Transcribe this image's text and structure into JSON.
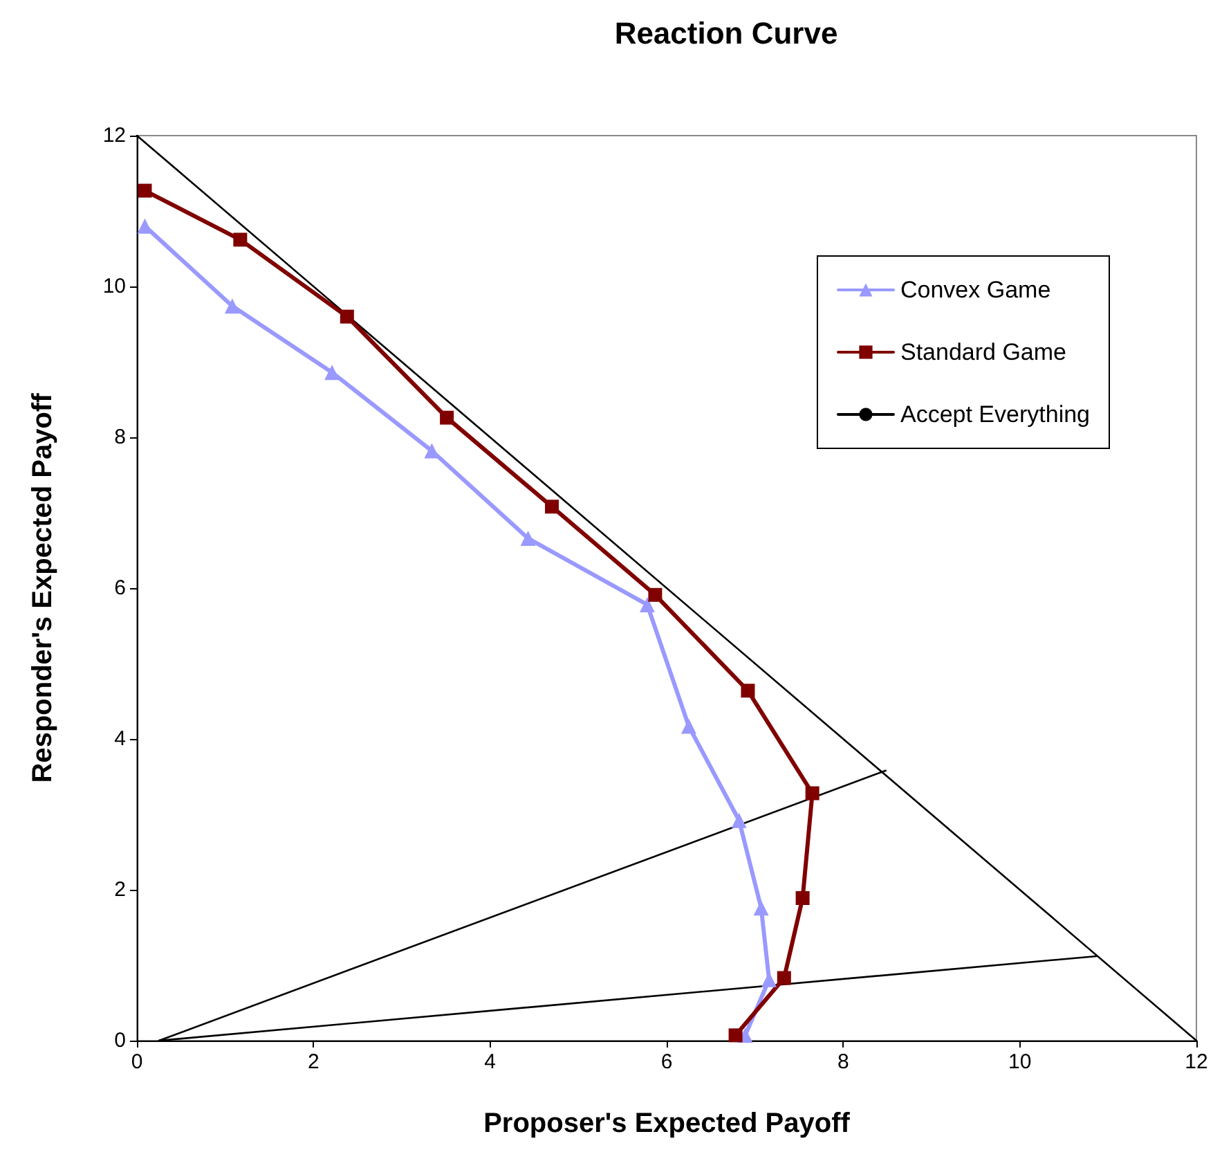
{
  "chart_data": {
    "type": "line",
    "title": "Reaction Curve",
    "xlabel": "Proposer's Expected Payoff",
    "ylabel": "Responder's Expected Payoff",
    "xlim": [
      0,
      12
    ],
    "ylim": [
      0,
      12
    ],
    "xticks": [
      0,
      2,
      4,
      6,
      8,
      10,
      12
    ],
    "yticks": [
      0,
      2,
      4,
      6,
      8,
      10,
      12
    ],
    "grid": false,
    "legend": "top right",
    "line_style": "solid",
    "series": [
      {
        "name": "Convex Game",
        "color": "#9999ff",
        "marker": "triangle",
        "x": [
          0.09,
          1.08,
          2.21,
          3.34,
          4.43,
          5.78,
          6.25,
          6.82,
          7.07,
          7.16,
          6.89
        ],
        "values": [
          10.8,
          9.74,
          8.86,
          7.82,
          6.66,
          5.78,
          4.17,
          2.92,
          1.76,
          0.81,
          0.07
        ]
      },
      {
        "name": "Standard Game",
        "color": "#800000",
        "marker": "square",
        "x": [
          0.09,
          1.17,
          2.38,
          3.51,
          4.7,
          5.87,
          6.92,
          7.65,
          7.54,
          7.33,
          6.78
        ],
        "values": [
          11.27,
          10.62,
          9.6,
          8.26,
          7.08,
          5.91,
          4.64,
          3.28,
          1.89,
          0.83,
          0.07
        ]
      },
      {
        "name": "Accept Everything",
        "color": "#000000",
        "marker": "none",
        "x": [
          0,
          12
        ],
        "values": [
          12,
          0
        ]
      },
      {
        "color": "#000000",
        "marker": "none",
        "x": [
          0.25,
          8.48
        ],
        "values": [
          0,
          3.58
        ]
      },
      {
        "color": "#000000",
        "marker": "none",
        "x": [
          0.25,
          10.87
        ],
        "values": [
          0,
          1.12
        ]
      }
    ]
  }
}
